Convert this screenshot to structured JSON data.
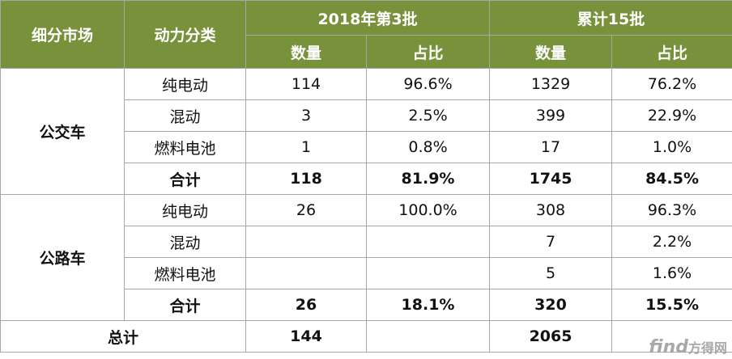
{
  "header": {
    "col_market": "细分市场",
    "col_power": "动力分类",
    "group_batch": "2018年第3批",
    "group_cum": "累计15批",
    "qty": "数量",
    "ratio": "占比"
  },
  "bus": {
    "label": "公交车",
    "rows": [
      {
        "type": "纯电动",
        "q1": "114",
        "r1": "96.6%",
        "q2": "1329",
        "r2": "76.2%"
      },
      {
        "type": "混动",
        "q1": "3",
        "r1": "2.5%",
        "q2": "399",
        "r2": "22.9%"
      },
      {
        "type": "燃料电池",
        "q1": "1",
        "r1": "0.8%",
        "q2": "17",
        "r2": "1.0%"
      }
    ],
    "total": {
      "type": "合计",
      "q1": "118",
      "r1": "81.9%",
      "q2": "1745",
      "r2": "84.5%"
    }
  },
  "coach": {
    "label": "公路车",
    "rows": [
      {
        "type": "纯电动",
        "q1": "26",
        "r1": "100.0%",
        "q2": "308",
        "r2": "96.3%"
      },
      {
        "type": "混动",
        "q1": "",
        "r1": "",
        "q2": "7",
        "r2": "2.2%"
      },
      {
        "type": "燃料电池",
        "q1": "",
        "r1": "",
        "q2": "5",
        "r2": "1.6%"
      }
    ],
    "total": {
      "type": "合计",
      "q1": "26",
      "r1": "18.1%",
      "q2": "320",
      "r2": "15.5%"
    }
  },
  "grand_total": {
    "label": "总计",
    "q1": "144",
    "q2": "2065"
  },
  "watermark": {
    "latin": "find",
    "cjk": "方得网"
  }
}
